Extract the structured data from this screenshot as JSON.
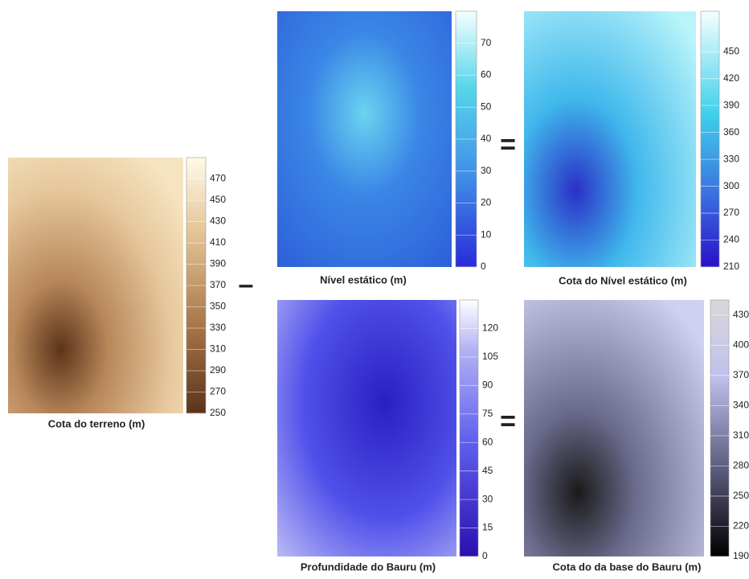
{
  "panels": [
    {
      "title": "Cota do terreno (m)",
      "range": [
        250,
        490
      ],
      "ticks": [
        250,
        270,
        290,
        310,
        330,
        350,
        370,
        390,
        410,
        430,
        450,
        470
      ]
    },
    {
      "title": "Nível estático (m)",
      "range": [
        0,
        80
      ],
      "ticks": [
        0,
        10,
        20,
        30,
        40,
        50,
        60,
        70
      ]
    },
    {
      "title": "Cota do Nível estático (m)",
      "range": [
        210,
        495
      ],
      "ticks": [
        210,
        240,
        270,
        300,
        330,
        360,
        390,
        420,
        450
      ]
    },
    {
      "title": "Profundidade do Bauru (m)",
      "range": [
        0,
        135
      ],
      "ticks": [
        0,
        15,
        30,
        45,
        60,
        75,
        90,
        105,
        120
      ]
    },
    {
      "title": "Cota do da base do Bauru (m)",
      "range": [
        190,
        445
      ],
      "ticks": [
        190,
        220,
        250,
        280,
        310,
        340,
        370,
        400,
        430
      ]
    }
  ],
  "operators": [
    "–",
    "=",
    "="
  ]
}
